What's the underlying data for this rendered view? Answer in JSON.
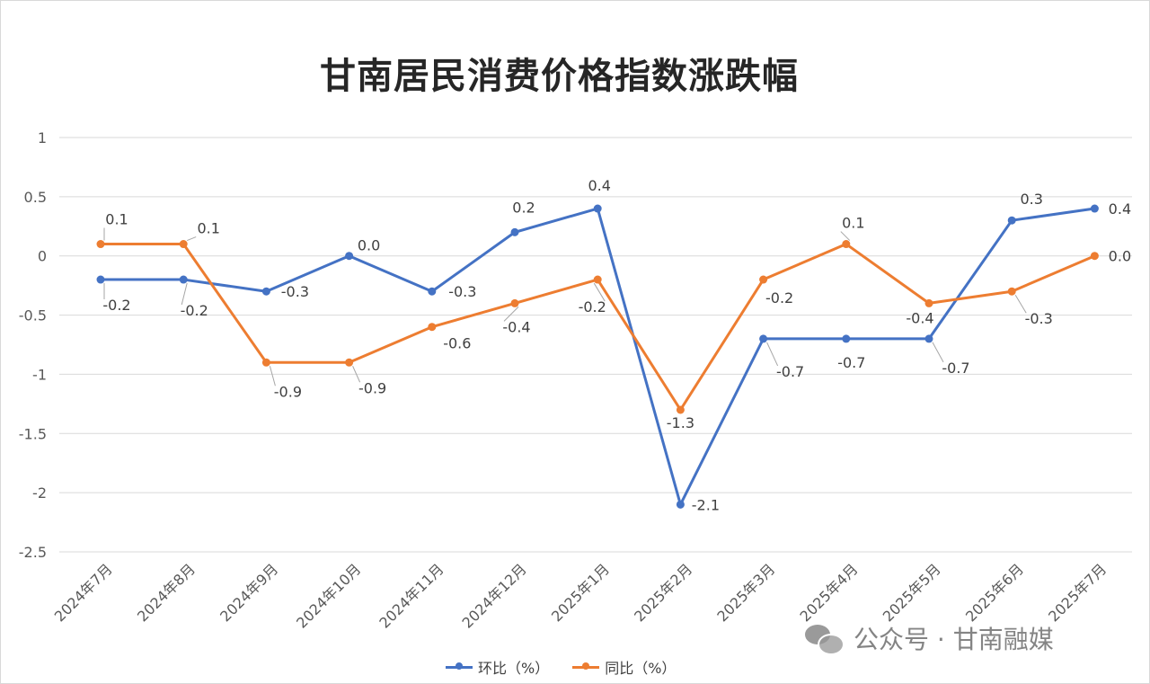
{
  "chart_data": {
    "type": "line",
    "title": "甘南居民消费价格指数涨跌幅",
    "categories": [
      "2024年7月",
      "2024年8月",
      "2024年9月",
      "2024年10月",
      "2024年11月",
      "2024年12月",
      "2025年1月",
      "2025年2月",
      "2025年3月",
      "2025年4月",
      "2025年5月",
      "2025年6月",
      "2025年7月"
    ],
    "series": [
      {
        "name": "环比（%）",
        "color": "#4472c4",
        "values": [
          -0.2,
          -0.2,
          -0.3,
          0.0,
          -0.3,
          0.2,
          0.4,
          -2.1,
          -0.7,
          -0.7,
          -0.7,
          0.3,
          0.4
        ],
        "labels": [
          "-0.2",
          "-0.2",
          "-0.3",
          "0.0",
          "-0.3",
          "0.2",
          "0.4",
          "-2.1",
          "-0.7",
          "-0.7",
          "-0.7",
          "0.3",
          "0.4"
        ]
      },
      {
        "name": "同比（%）",
        "color": "#ed7d31",
        "values": [
          0.1,
          0.1,
          -0.9,
          -0.9,
          -0.6,
          -0.4,
          -0.2,
          -1.3,
          -0.2,
          0.1,
          -0.4,
          -0.3,
          0.0
        ],
        "labels": [
          "0.1",
          "0.1",
          "-0.9",
          "-0.9",
          "-0.6",
          "-0.4",
          "-0.2",
          "-1.3",
          "-0.2",
          "0.1",
          "-0.4",
          "-0.3",
          "0.0"
        ]
      }
    ],
    "ylim": [
      -2.5,
      1
    ],
    "yticks": [
      "1",
      "0.5",
      "0",
      "-0.5",
      "-1",
      "-1.5",
      "-2",
      "-2.5"
    ],
    "grid": true,
    "legend": "bottom"
  },
  "watermark": {
    "text": "公众号 · 甘南融媒",
    "icon": "wechat-icon"
  }
}
